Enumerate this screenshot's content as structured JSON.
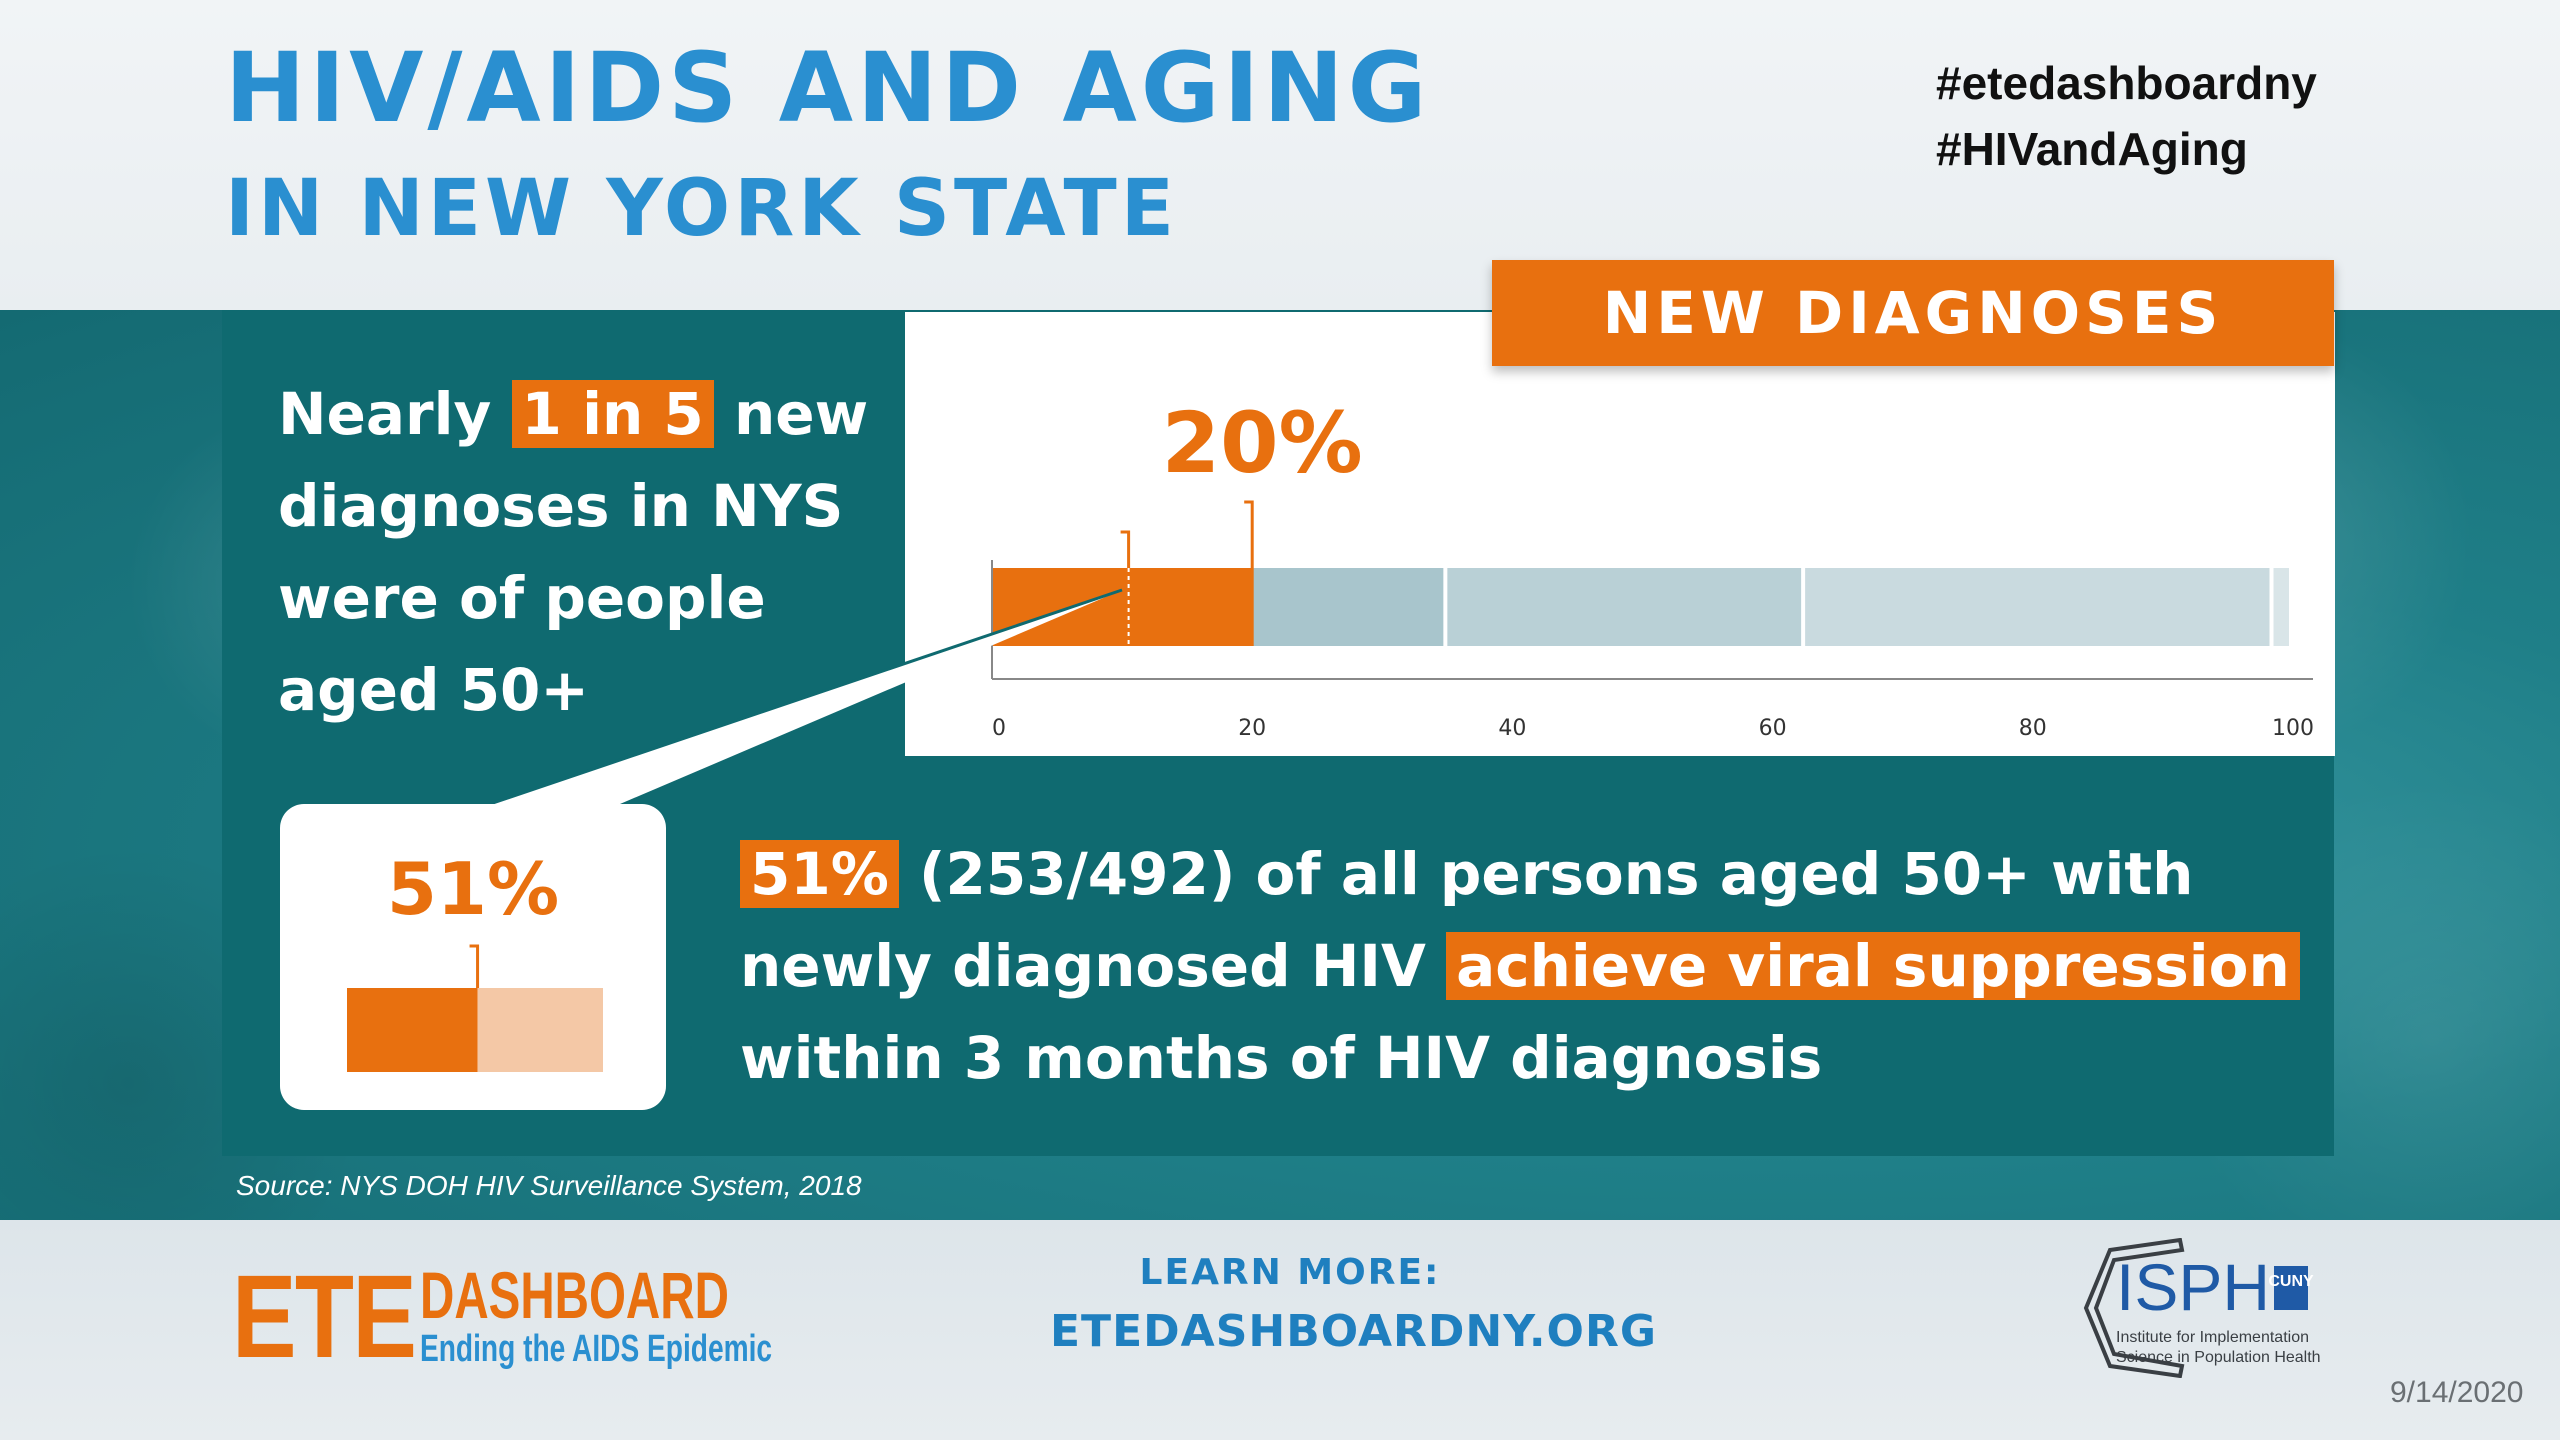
{
  "header": {
    "title_line1": "HIV/AIDS AND AGING",
    "title_line2": "IN NEW YORK STATE",
    "hashtags": [
      "#etedashboardny",
      "#HIVandAging"
    ]
  },
  "left_statement": {
    "before": "Nearly ",
    "highlight": "1 in 5",
    "after_line1": " new",
    "line2": "diagnoses in NYS",
    "line3": "were of people",
    "line4": "aged 50+"
  },
  "new_diagnoses_chart": {
    "label": "NEW DIAGNOSES",
    "value_label": "20%",
    "tick_labels": [
      "0",
      "20",
      "40",
      "60",
      "80",
      "100"
    ]
  },
  "mini_chart": {
    "value_label": "51%"
  },
  "right_statement": {
    "highlight1": "51%",
    "line1_rest": " (253/492) of all persons aged 50+ with",
    "line2_start": "newly diagnosed HIV ",
    "highlight2": "achieve viral suppression",
    "line3": "within 3 months of HIV diagnosis"
  },
  "source": "Source: NYS DOH HIV Surveillance System, 2018",
  "footer": {
    "ete_big": "ETE",
    "ete_dashboard": "DASHBOARD",
    "ete_tagline": "Ending the AIDS Epidemic",
    "learn_more": "LEARN MORE:",
    "website": "ETEDASHBOARDNY.ORG",
    "isph_text": "ISPH",
    "cuny_text": "CUNY",
    "isph_line1": "Institute for Implementation",
    "isph_line2": "Science in Population Health",
    "date": "9/14/2020"
  },
  "colors": {
    "orange": "#e8700f",
    "blue": "#2a8fd0",
    "teal": "#0f6a70"
  },
  "chart_data": [
    {
      "type": "bar",
      "title": "NEW DIAGNOSES",
      "orientation": "horizontal-stacked",
      "xlim": [
        0,
        100
      ],
      "x_ticks": [
        0,
        20,
        40,
        60,
        80,
        100
      ],
      "segments": [
        {
          "start": 0,
          "end": 20,
          "highlight": true
        },
        {
          "start": 20,
          "end": 35,
          "highlight": false
        },
        {
          "start": 35,
          "end": 62.5,
          "highlight": false
        },
        {
          "start": 62.5,
          "end": 98.5,
          "highlight": false
        },
        {
          "start": 98.5,
          "end": 100,
          "highlight": false
        }
      ],
      "highlight_value": 20,
      "inner_marker_value": 10.5,
      "data_label": "20%"
    },
    {
      "type": "bar",
      "orientation": "horizontal-stacked",
      "values": [
        51,
        49
      ],
      "highlight_value": 51,
      "data_label": "51%"
    }
  ]
}
